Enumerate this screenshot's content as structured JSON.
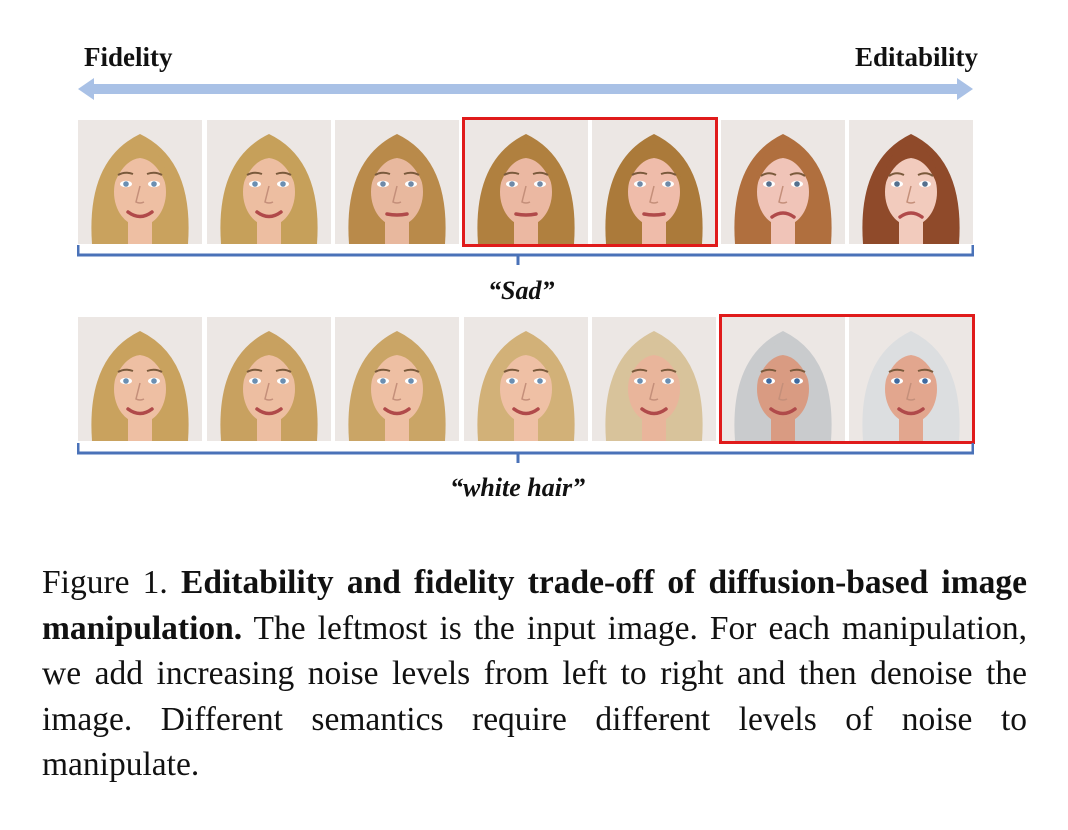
{
  "figure": {
    "axis": {
      "left_label": "Fidelity",
      "right_label": "Editability"
    },
    "rows": [
      {
        "prompt": "“Sad”",
        "highlighted_indices": [
          3,
          4
        ],
        "images": [
          {
            "hair": "#c9a25e",
            "skin": "#eebfa3",
            "mood": "smile",
            "eyes": "#6b8fb2"
          },
          {
            "hair": "#c6a05a",
            "skin": "#edbea1",
            "mood": "smile",
            "eyes": "#6b8fb2"
          },
          {
            "hair": "#b98a4a",
            "skin": "#e8b89e",
            "mood": "neutral",
            "eyes": "#6f8aa8"
          },
          {
            "hair": "#b0803f",
            "skin": "#ebb8a2",
            "mood": "neutral",
            "eyes": "#6f8aa8"
          },
          {
            "hair": "#ab7a3a",
            "skin": "#efbcaa",
            "mood": "neutral",
            "eyes": "#6f8aa8"
          },
          {
            "hair": "#b06f3e",
            "skin": "#f0c4b8",
            "mood": "sad",
            "eyes": "#55708e"
          },
          {
            "hair": "#8f4a2a",
            "skin": "#f2cbbd",
            "mood": "sad",
            "eyes": "#55708e"
          }
        ]
      },
      {
        "prompt": "“white hair”",
        "highlighted_indices": [
          5,
          6
        ],
        "images": [
          {
            "hair": "#c9a25e",
            "skin": "#eebfa3",
            "mood": "smile",
            "eyes": "#6b8fb2"
          },
          {
            "hair": "#c8a160",
            "skin": "#edbea1",
            "mood": "smile",
            "eyes": "#6b8fb2"
          },
          {
            "hair": "#caa566",
            "skin": "#eebfa3",
            "mood": "smile",
            "eyes": "#6b8fb2"
          },
          {
            "hair": "#d2b178",
            "skin": "#efc0a5",
            "mood": "smile",
            "eyes": "#6b8fb2"
          },
          {
            "hair": "#d8c39b",
            "skin": "#e9b59b",
            "mood": "smile",
            "eyes": "#6b8fb2"
          },
          {
            "hair": "#c9cbcd",
            "skin": "#d99b82",
            "mood": "smile",
            "eyes": "#3f6aa0"
          },
          {
            "hair": "#dcdee0",
            "skin": "#e2a68e",
            "mood": "smile",
            "eyes": "#3f6aa0"
          }
        ]
      }
    ],
    "colors": {
      "arrow": "#a9c1e6",
      "brace": "#4a72b8",
      "highlight": "#e01b1b"
    }
  },
  "caption": {
    "prefix": "Figure 1. ",
    "bold": "Editability and fidelity trade-off of diffusion-based image manipulation.",
    "text": " The leftmost is the input image. For each manipulation, we add increasing noise levels from left to right and then denoise the image. Different semantics require different levels of noise to manipulate."
  }
}
